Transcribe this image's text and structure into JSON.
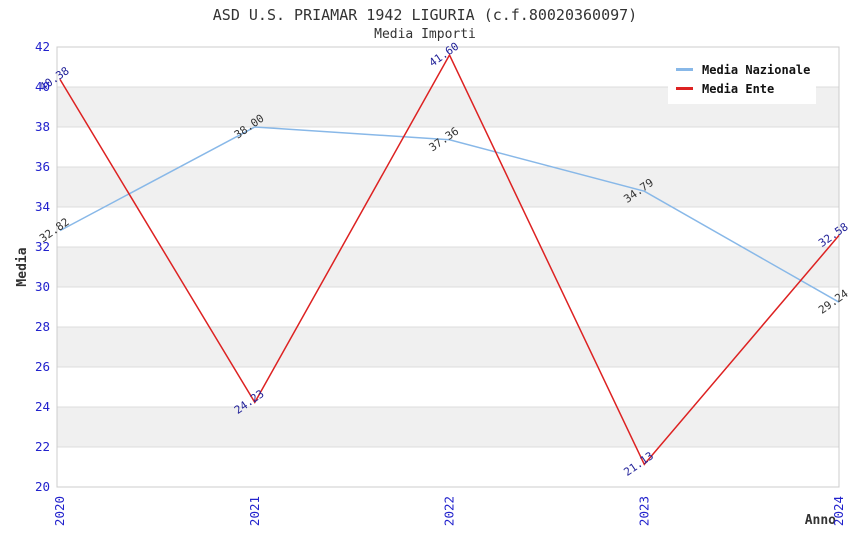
{
  "chart_data": {
    "type": "line",
    "title": "ASD U.S. PRIAMAR 1942 LIGURIA (c.f.80020360097)",
    "subtitle": "Media Importi",
    "xlabel": "Anno",
    "ylabel": "Media",
    "x": [
      "2020",
      "2021",
      "2022",
      "2023",
      "2024"
    ],
    "ylim": [
      20,
      42
    ],
    "ytick_step": 2,
    "grid": true,
    "legend_position": "top-right",
    "series": [
      {
        "name": "Media Nazionale",
        "color": "#88b8e8",
        "label_color": "#333333",
        "values": [
          32.82,
          38.0,
          37.36,
          34.79,
          29.24
        ]
      },
      {
        "name": "Media Ente",
        "color": "#dd2222",
        "label_color": "#222299",
        "values": [
          40.38,
          24.23,
          41.6,
          21.13,
          32.58
        ]
      }
    ],
    "colors": {
      "band": "#f0f0f0",
      "gridline": "#dcdcdc",
      "plot_border": "#cccccc",
      "tick_label": "#2222cc",
      "axis_label": "#333333",
      "title": "#333333",
      "background": "#ffffff"
    }
  }
}
